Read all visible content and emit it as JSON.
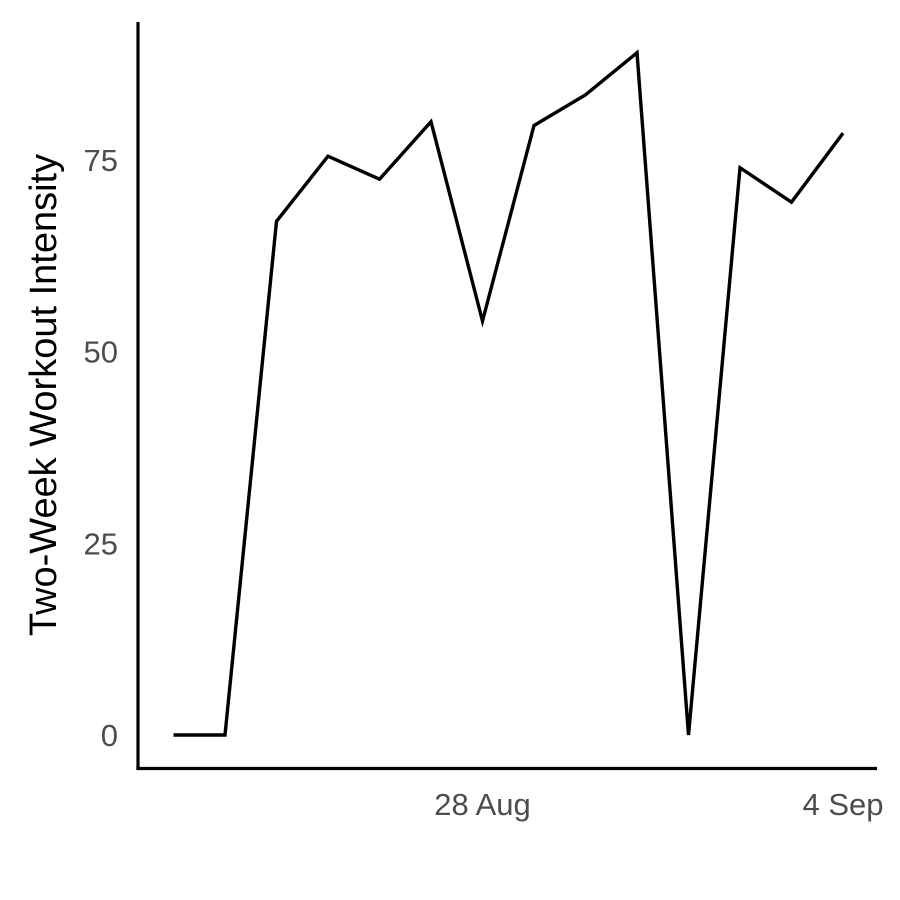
{
  "chart_data": {
    "type": "line",
    "title": "",
    "xlabel": "",
    "ylabel": "Two-Week Workout Intensity",
    "x": [
      "2023-08-22",
      "2023-08-23",
      "2023-08-24",
      "2023-08-25",
      "2023-08-26",
      "2023-08-27",
      "2023-08-28",
      "2023-08-29",
      "2023-08-30",
      "2023-08-31",
      "2023-09-01",
      "2023-09-02",
      "2023-09-03",
      "2023-09-04"
    ],
    "series": [
      {
        "values": [
          0,
          0,
          67,
          75.5,
          72.5,
          80,
          54,
          79.5,
          83.5,
          89,
          0,
          74,
          69.5,
          78.5
        ]
      }
    ],
    "xticks": [
      {
        "value": "2023-08-28",
        "label": "28 Aug"
      },
      {
        "value": "2023-09-04",
        "label": "4 Sep"
      }
    ],
    "yticks": [
      0,
      25,
      50,
      75
    ],
    "xlim": [
      "2023-08-21",
      "2023-09-04"
    ],
    "ylim": [
      -4.3,
      93
    ],
    "grid": false,
    "legend": "none",
    "colors": {
      "line": "#000000",
      "axis": "#000000",
      "tick_text": "#4d4d4d"
    }
  }
}
